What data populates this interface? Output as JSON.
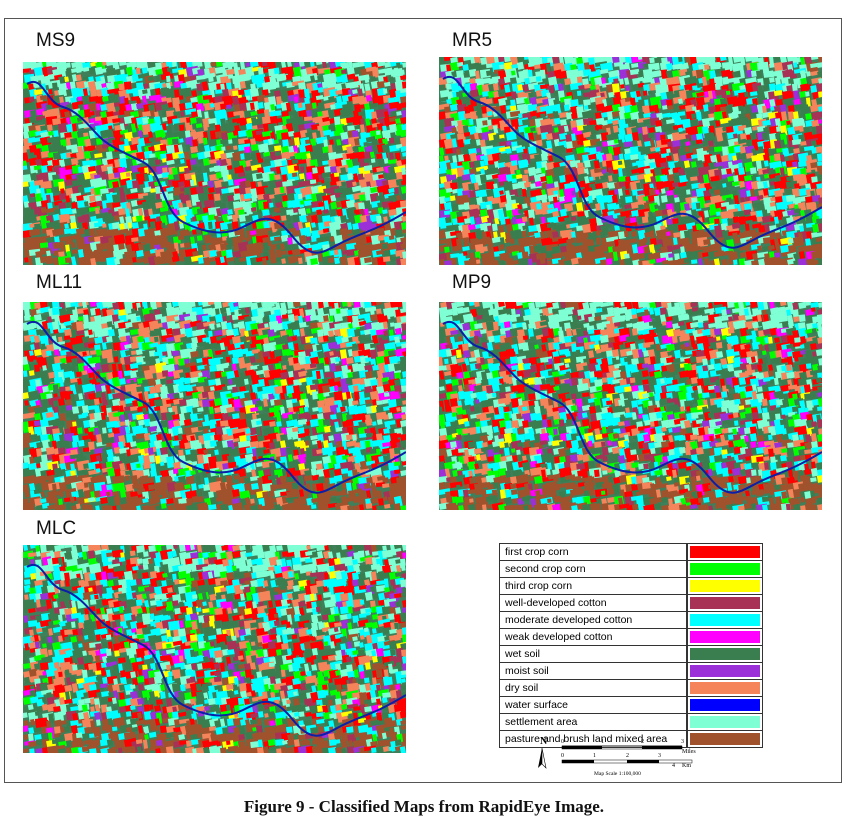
{
  "figure": {
    "caption": "Figure 9 - Classified Maps from RapidEye Image.",
    "panels": [
      {
        "label": "MS9"
      },
      {
        "label": "MR5"
      },
      {
        "label": "ML11"
      },
      {
        "label": "MP9"
      },
      {
        "label": "MLC"
      }
    ]
  },
  "legend": [
    {
      "label": "first crop corn",
      "color": "#ff0000"
    },
    {
      "label": "second crop corn",
      "color": "#00ff00"
    },
    {
      "label": "third crop corn",
      "color": "#ffff00"
    },
    {
      "label": "well-developed cotton",
      "color": "#a83256"
    },
    {
      "label": "moderate developed cotton",
      "color": "#00ffff"
    },
    {
      "label": "weak developed cotton",
      "color": "#ff00ff"
    },
    {
      "label": "wet soil",
      "color": "#3a7d4f"
    },
    {
      "label": "moist soil",
      "color": "#9b30d9"
    },
    {
      "label": "dry soil",
      "color": "#f5845a"
    },
    {
      "label": "water surface",
      "color": "#0000ff"
    },
    {
      "label": "settlement area",
      "color": "#7fffd4"
    },
    {
      "label": "pasture and brush land mixed area",
      "color": "#a0522d"
    }
  ],
  "scale": {
    "north": "N",
    "miles_ticks": [
      "0",
      "1",
      "2",
      "3"
    ],
    "miles_unit": "Miles",
    "km_ticks": [
      "0",
      "1",
      "2",
      "3",
      "4"
    ],
    "km_unit": "Km",
    "scale_text": "Map Scale 1:100,000"
  }
}
